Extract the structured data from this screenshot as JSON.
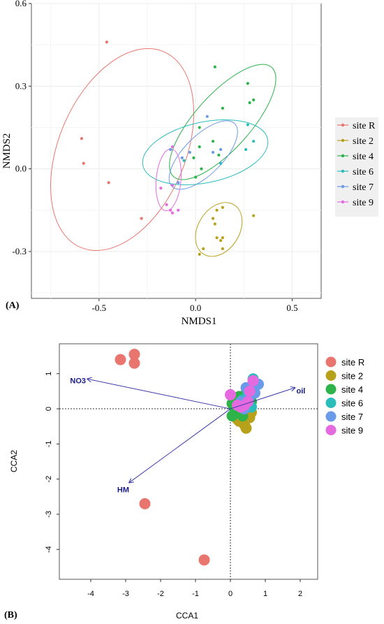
{
  "panels": {
    "a": {
      "panel_label": "(A)",
      "legend_title": "",
      "legend": [
        "site R",
        "site 2",
        "site 4",
        "site 6",
        "site 7",
        "site 9"
      ]
    },
    "b": {
      "panel_label": "(B)",
      "legend": [
        "site R",
        "site 2",
        "site 4",
        "site 6",
        "site 7",
        "site 9"
      ]
    }
  },
  "colors": {
    "site R": "#e8766f",
    "site 2": "#b8a11a",
    "site 4": "#2db34a",
    "site 6": "#2bbcbc",
    "site 7": "#6a9ae8",
    "site 9": "#e56ae0",
    "arrow": "#3a3aa8",
    "arrow_label": "#1a1a8a"
  },
  "chart_data": [
    {
      "type": "scatter",
      "title": "",
      "xlabel": "NMDS1",
      "ylabel": "NMDS2",
      "xlim": [
        -0.85,
        0.65
      ],
      "ylim": [
        -0.47,
        0.6
      ],
      "xticks": [
        -0.5,
        0.0,
        0.5
      ],
      "xtick_labels": [
        "-0.5",
        "0.0",
        "0.5"
      ],
      "yticks": [
        -0.3,
        0.0,
        0.3,
        0.6
      ],
      "ytick_labels": [
        "-0.3",
        "0.0",
        "0.3",
        "0.6"
      ],
      "grid": true,
      "legend_position": "right",
      "series": [
        {
          "name": "site R",
          "points": [
            [
              -0.46,
              0.46
            ],
            [
              -0.59,
              0.11
            ],
            [
              -0.58,
              0.02
            ],
            [
              -0.45,
              -0.05
            ],
            [
              -0.28,
              -0.18
            ]
          ],
          "ellipse": {
            "cx": -0.38,
            "cy": 0.07,
            "rx": 0.55,
            "ry": 0.23,
            "angle_deg": 67
          }
        },
        {
          "name": "site 2",
          "points": [
            [
              0.11,
              -0.15
            ],
            [
              0.14,
              -0.14
            ],
            [
              0.09,
              -0.18
            ],
            [
              0.1,
              -0.2
            ],
            [
              0.3,
              -0.17
            ],
            [
              0.14,
              -0.25
            ],
            [
              0.11,
              -0.25
            ],
            [
              0.13,
              -0.26
            ],
            [
              0.04,
              -0.29
            ],
            [
              0.14,
              -0.29
            ],
            [
              0.02,
              -0.31
            ]
          ],
          "ellipse": {
            "cx": 0.12,
            "cy": -0.22,
            "rx": 0.15,
            "ry": 0.075,
            "angle_deg": 58
          }
        },
        {
          "name": "site 4",
          "points": [
            [
              0.1,
              0.37
            ],
            [
              0.27,
              0.31
            ],
            [
              0.28,
              0.24
            ],
            [
              0.3,
              0.25
            ],
            [
              0.14,
              0.22
            ],
            [
              0.02,
              0.15
            ],
            [
              0.09,
              0.1
            ],
            [
              0.02,
              0.08
            ],
            [
              0.12,
              0.05
            ],
            [
              -0.01,
              0.04
            ],
            [
              0.03,
              0.0
            ],
            [
              0.0,
              -0.03
            ]
          ],
          "ellipse": {
            "cx": 0.14,
            "cy": 0.17,
            "rx": 0.38,
            "ry": 0.1,
            "angle_deg": 48
          }
        },
        {
          "name": "site 6",
          "points": [
            [
              0.27,
              0.16
            ],
            [
              0.3,
              0.1
            ],
            [
              0.26,
              0.07
            ],
            [
              0.13,
              0.02
            ],
            [
              -0.06,
              0.03
            ]
          ],
          "ellipse": {
            "cx": 0.05,
            "cy": 0.06,
            "rx": 0.33,
            "ry": 0.11,
            "angle_deg": 12
          }
        },
        {
          "name": "site 7",
          "points": [
            [
              0.06,
              0.19
            ],
            [
              0.09,
              0.06
            ],
            [
              0.13,
              0.07
            ],
            [
              -0.03,
              0.06
            ],
            [
              -0.07,
              0.04
            ],
            [
              -0.13,
              0.07
            ],
            [
              -0.09,
              -0.05
            ]
          ],
          "ellipse": {
            "cx": 0.04,
            "cy": 0.05,
            "rx": 0.23,
            "ry": 0.07,
            "angle_deg": 45
          }
        },
        {
          "name": "site 9",
          "points": [
            [
              -0.12,
              0.08
            ],
            [
              -0.12,
              -0.06
            ],
            [
              -0.18,
              -0.07
            ],
            [
              -0.15,
              -0.13
            ],
            [
              -0.12,
              -0.16
            ],
            [
              -0.09,
              -0.15
            ],
            [
              -0.13,
              -0.15
            ]
          ],
          "ellipse": {
            "cx": -0.14,
            "cy": -0.04,
            "rx": 0.16,
            "ry": 0.045,
            "angle_deg": 85
          }
        }
      ]
    },
    {
      "type": "scatter",
      "title": "",
      "xlabel": "CCA1",
      "ylabel": "CCA2",
      "xlim": [
        -4.9,
        2.5
      ],
      "ylim": [
        -4.85,
        1.85
      ],
      "xticks": [
        -4,
        -3,
        -2,
        -1,
        0,
        1,
        2
      ],
      "xtick_labels": [
        "-4",
        "-3",
        "-2",
        "-1",
        "0",
        "1",
        "2"
      ],
      "yticks": [
        1,
        0,
        -1,
        -2,
        -3,
        -4
      ],
      "ytick_labels": [
        "1",
        "0",
        "-1",
        "-2",
        "-3",
        "-4"
      ],
      "grid": false,
      "reference_lines": {
        "x": 0,
        "y": 0
      },
      "legend_position": "right",
      "arrows": [
        {
          "label": "NO3",
          "x": -4.1,
          "y": 0.85
        },
        {
          "label": "oil",
          "x": 1.85,
          "y": 0.6
        },
        {
          "label": "HM",
          "x": -2.9,
          "y": -2.1
        }
      ],
      "series": [
        {
          "name": "site R",
          "points": [
            [
              -2.75,
              1.55
            ],
            [
              -3.15,
              1.4
            ],
            [
              -2.75,
              1.3
            ],
            [
              -2.45,
              -2.7
            ],
            [
              -0.75,
              -4.3
            ]
          ]
        },
        {
          "name": "site 2",
          "points": [
            [
              0.25,
              -0.35
            ],
            [
              0.4,
              -0.45
            ],
            [
              0.45,
              -0.55
            ],
            [
              0.55,
              -0.25
            ],
            [
              0.15,
              -0.2
            ],
            [
              0.35,
              0.15
            ],
            [
              0.55,
              0.05
            ],
            [
              0.45,
              -0.15
            ],
            [
              0.3,
              -0.05
            ],
            [
              0.6,
              -0.1
            ],
            [
              0.2,
              -0.3
            ]
          ]
        },
        {
          "name": "site 4",
          "points": [
            [
              0.1,
              0.05
            ],
            [
              0.2,
              -0.1
            ],
            [
              0.3,
              0.2
            ],
            [
              0.05,
              -0.2
            ],
            [
              0.4,
              0.3
            ],
            [
              0.25,
              0.35
            ],
            [
              0.6,
              0.2
            ],
            [
              0.5,
              0.1
            ],
            [
              0.15,
              0.25
            ],
            [
              0.35,
              -0.2
            ],
            [
              0.05,
              0.15
            ],
            [
              0.45,
              0.45
            ]
          ]
        },
        {
          "name": "site 6",
          "points": [
            [
              0.65,
              0.85
            ],
            [
              0.75,
              0.7
            ],
            [
              0.5,
              0.4
            ],
            [
              0.35,
              0.25
            ],
            [
              0.6,
              0.05
            ]
          ]
        },
        {
          "name": "site 7",
          "points": [
            [
              0.8,
              0.7
            ],
            [
              0.45,
              0.6
            ],
            [
              0.55,
              0.35
            ],
            [
              0.3,
              0.2
            ],
            [
              0.4,
              0.0
            ],
            [
              0.6,
              0.55
            ],
            [
              0.7,
              0.45
            ]
          ]
        },
        {
          "name": "site 9",
          "points": [
            [
              0.0,
              0.4
            ],
            [
              0.65,
              0.8
            ],
            [
              0.3,
              0.05
            ],
            [
              0.5,
              0.2
            ],
            [
              0.2,
              0.1
            ],
            [
              0.55,
              0.5
            ],
            [
              0.4,
              0.1
            ]
          ]
        }
      ]
    }
  ]
}
